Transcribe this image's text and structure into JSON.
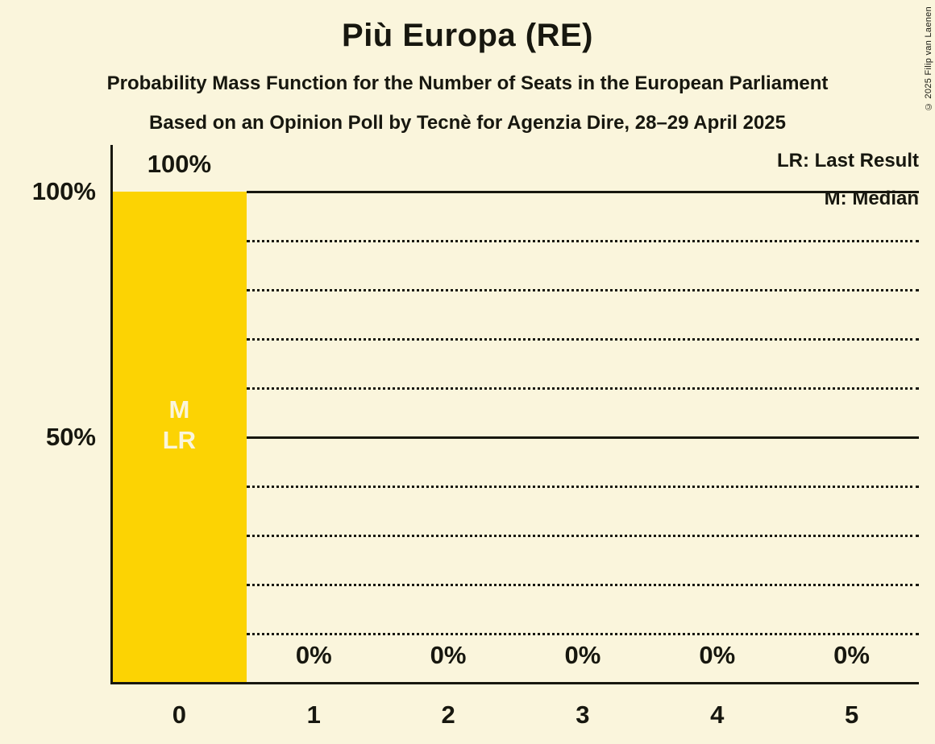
{
  "title": "Più Europa (RE)",
  "subtitles": [
    "Probability Mass Function for the Number of Seats in the European Parliament",
    "Based on an Opinion Poll by Tecnè for Agenzia Dire, 28–29 April 2025"
  ],
  "legend": {
    "last_result": "LR: Last Result",
    "median": "M: Median"
  },
  "copyright": "© 2025 Filip van Laenen",
  "colors": {
    "background": "#FAF5DC",
    "bar": "#FCD303",
    "text": "#17170F",
    "bar_annotation_text": "#FAF5DC"
  },
  "chart_data": {
    "type": "bar",
    "title": "Più Europa (RE)",
    "categories": [
      "0",
      "1",
      "2",
      "3",
      "4",
      "5"
    ],
    "values": [
      100,
      0,
      0,
      0,
      0,
      0
    ],
    "value_labels": [
      "100%",
      "0%",
      "0%",
      "0%",
      "0%",
      "0%"
    ],
    "xlabel": "",
    "ylabel": "",
    "ylim": [
      0,
      100
    ],
    "y_ticks": [
      {
        "label": "100%",
        "value": 100
      },
      {
        "label": "50%",
        "value": 50
      }
    ],
    "solid_gridlines": [
      100,
      50
    ],
    "dotted_gridlines": [
      90,
      80,
      70,
      60,
      40,
      30,
      20,
      10
    ],
    "grid": "horizontal",
    "legend_position": "top-right",
    "annotated_category": 0,
    "bar_annotations": [
      "M",
      "LR"
    ],
    "median_seats": 0,
    "last_result_seats": 0
  }
}
